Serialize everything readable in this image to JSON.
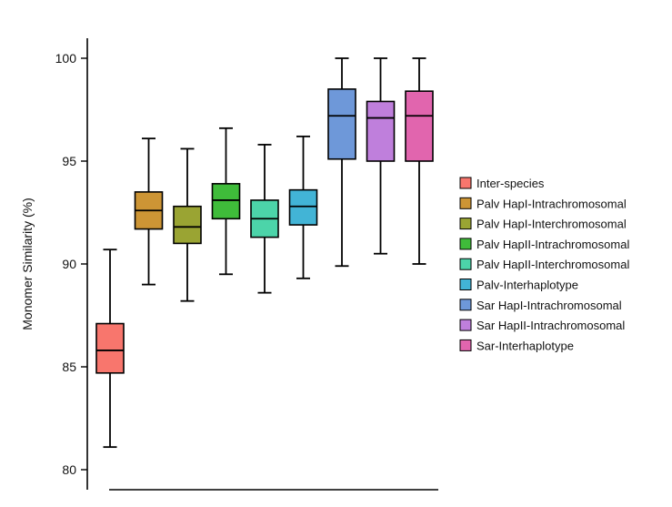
{
  "chart_data": {
    "type": "boxplot",
    "title": "",
    "xlabel": "",
    "ylabel": "Monomer Similarity (%)",
    "ylim": [
      80,
      100
    ],
    "yticks": [
      80,
      85,
      90,
      95,
      100
    ],
    "grid": false,
    "legend_position": "right",
    "series": [
      {
        "name": "Inter-species",
        "color": "#F8766D",
        "min": 81.1,
        "q1": 84.7,
        "median": 85.8,
        "q3": 87.1,
        "max": 90.7
      },
      {
        "name": "Palv HapI-Intrachromosomal",
        "color": "#CD9535",
        "min": 89.0,
        "q1": 91.7,
        "median": 92.6,
        "q3": 93.5,
        "max": 96.1
      },
      {
        "name": "Palv HapI-Interchromosomal",
        "color": "#9AA433",
        "min": 88.2,
        "q1": 91.0,
        "median": 91.8,
        "q3": 92.8,
        "max": 95.6
      },
      {
        "name": "Palv HapII-Intrachromosomal",
        "color": "#3FBC3A",
        "min": 89.5,
        "q1": 92.2,
        "median": 93.1,
        "q3": 93.9,
        "max": 96.6
      },
      {
        "name": "Palv HapII-Interchromosomal",
        "color": "#4CD4A9",
        "min": 88.6,
        "q1": 91.3,
        "median": 92.2,
        "q3": 93.1,
        "max": 95.8
      },
      {
        "name": "Palv-Interhaplotype",
        "color": "#42B4D6",
        "min": 89.3,
        "q1": 91.9,
        "median": 92.8,
        "q3": 93.6,
        "max": 96.2
      },
      {
        "name": "Sar HapI-Intrachromosomal",
        "color": "#6E98D9",
        "min": 89.9,
        "q1": 95.1,
        "median": 97.2,
        "q3": 98.5,
        "max": 100.0
      },
      {
        "name": "Sar HapII-Intrachromosomal",
        "color": "#BF7FDC",
        "min": 90.5,
        "q1": 95.0,
        "median": 97.1,
        "q3": 97.9,
        "max": 100.0
      },
      {
        "name": "Sar-Interhaplotype",
        "color": "#E165AE",
        "min": 90.0,
        "q1": 95.0,
        "median": 97.2,
        "q3": 98.4,
        "max": 100.0
      }
    ]
  }
}
